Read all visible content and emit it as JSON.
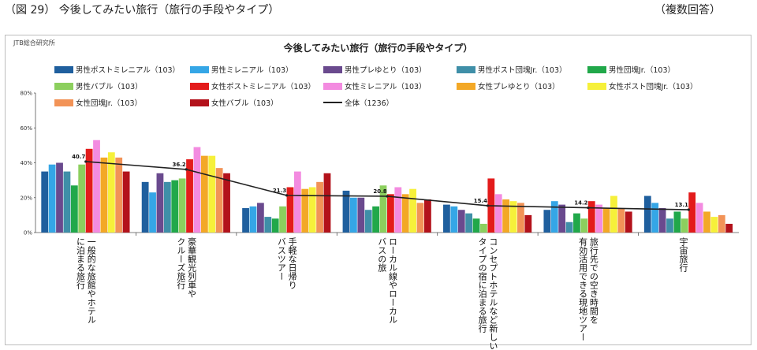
{
  "header": {
    "figure_title": "（図 29） 今後してみたい旅行（旅行の手段やタイプ）",
    "note": "（複数回答）"
  },
  "source": "JTB総合研究所",
  "chart_data": {
    "type": "bar",
    "title": "今後してみたい旅行（旅行の手段やタイプ）",
    "ylim": [
      0,
      80
    ],
    "yticks": [
      "0%",
      "20%",
      "40%",
      "60%",
      "80%"
    ],
    "grid": false,
    "legend_position": "top",
    "categories": [
      [
        "一般的な旅館やホテル",
        "に泊まる旅行"
      ],
      [
        "豪華観光列車や",
        "クルーズ旅行"
      ],
      [
        "手軽な日帰り",
        "バスツアー"
      ],
      [
        "ローカル線やローカル",
        "バスの旅"
      ],
      [
        "コンセプトホテルなど新しい",
        "タイプの宿に泊まる旅行"
      ],
      [
        "旅行先での空き時間を",
        "有効活用できる現地ツアー"
      ],
      [
        "宇宙旅行"
      ]
    ],
    "series": [
      {
        "name": "男性ポストミレニアル（103）",
        "color": "#1f5f9e",
        "values": [
          35,
          29,
          14,
          24,
          16,
          13,
          21
        ]
      },
      {
        "name": "男性ミレニアル（103）",
        "color": "#35a6e6",
        "values": [
          39,
          23,
          15,
          20,
          15,
          18,
          17
        ]
      },
      {
        "name": "男性プレゆとり（103）",
        "color": "#6a4a8e",
        "values": [
          40,
          34,
          17,
          20,
          13,
          16,
          14
        ]
      },
      {
        "name": "男性ポスト団塊Jr.（103）",
        "color": "#3f8fa8",
        "values": [
          35,
          29,
          9,
          13,
          11,
          6,
          8
        ]
      },
      {
        "name": "男性団塊Jr.（103）",
        "color": "#21a84a",
        "values": [
          27,
          30,
          8,
          15,
          8,
          11,
          12
        ]
      },
      {
        "name": "男性バブル（103）",
        "color": "#8ccf5e",
        "values": [
          39,
          31,
          15,
          27,
          5,
          8,
          8
        ]
      },
      {
        "name": "女性ポストミレニアル（103）",
        "color": "#e31b1b",
        "values": [
          48,
          42,
          26,
          22,
          31,
          18,
          23
        ]
      },
      {
        "name": "女性ミレニアル（103）",
        "color": "#f38be0",
        "values": [
          53,
          49,
          35,
          26,
          22,
          16,
          17
        ]
      },
      {
        "name": "女性プレゆとり（103）",
        "color": "#f3a826",
        "values": [
          43,
          44,
          25,
          22,
          19,
          14,
          12
        ]
      },
      {
        "name": "女性ポスト団塊Jr.（103）",
        "color": "#f6f03a",
        "values": [
          46,
          44,
          26,
          25,
          18,
          21,
          9
        ]
      },
      {
        "name": "女性団塊Jr.（103）",
        "color": "#f29357",
        "values": [
          43,
          37,
          29,
          17,
          17,
          14,
          10
        ]
      },
      {
        "name": "女性バブル（103）",
        "color": "#b3121b",
        "values": [
          35,
          34,
          34,
          19,
          10,
          12,
          5
        ]
      }
    ],
    "line_series": {
      "name": "全体（1236）",
      "color": "#222222",
      "values": [
        40.7,
        36.2,
        21.3,
        20.8,
        15.4,
        14.2,
        13.1
      ],
      "labels": [
        "40.7",
        "36.2",
        "21.3",
        "20.8",
        "15.4",
        "14.2",
        "13.1"
      ]
    }
  }
}
